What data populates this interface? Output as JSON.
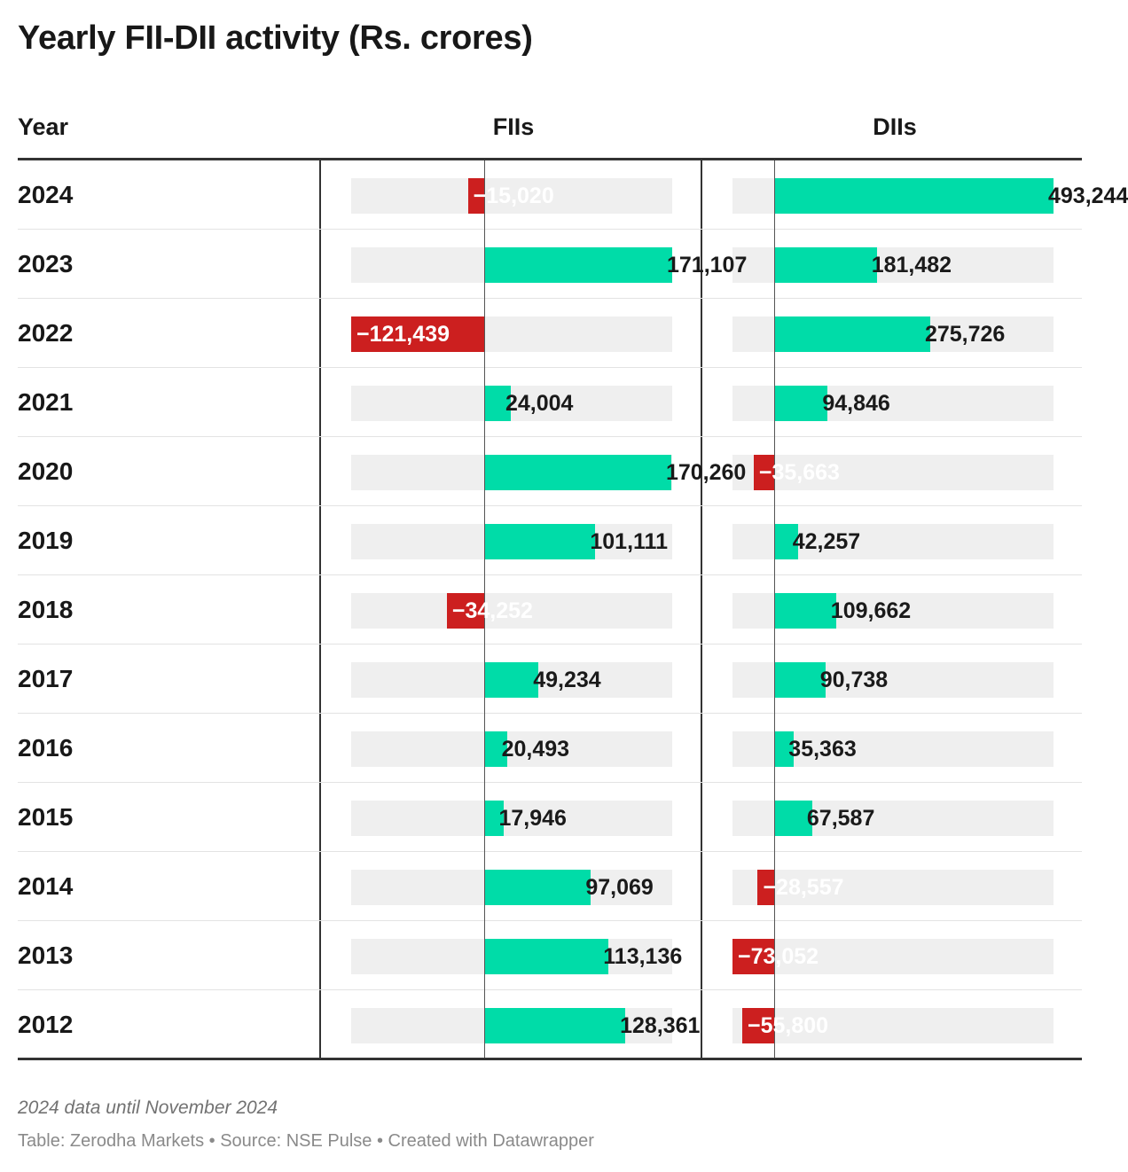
{
  "title": "Yearly FII-DII activity (Rs. crores)",
  "columns": {
    "year": "Year",
    "fii": "FIIs",
    "dii": "DIIs"
  },
  "colors": {
    "positive": "#00dca8",
    "negative": "#cc1f1f",
    "track": "#efefef"
  },
  "chart_data": {
    "type": "bar",
    "orientation": "horizontal",
    "categories": [
      "2024",
      "2023",
      "2022",
      "2021",
      "2020",
      "2019",
      "2018",
      "2017",
      "2016",
      "2015",
      "2014",
      "2013",
      "2012"
    ],
    "series": [
      {
        "name": "FIIs",
        "values": [
          -15020,
          171107,
          -121439,
          24004,
          170260,
          101111,
          -34252,
          49234,
          20493,
          17946,
          97069,
          113136,
          128361
        ],
        "labels": [
          "−15,020",
          "171,107",
          "−121,439",
          "24,004",
          "170,260",
          "101,111",
          "−34,252",
          "49,234",
          "20,493",
          "17,946",
          "97,069",
          "113,136",
          "128,361"
        ],
        "xlim": [
          -121439,
          171107
        ]
      },
      {
        "name": "DIIs",
        "values": [
          493244,
          181482,
          275726,
          94846,
          -35663,
          42257,
          109662,
          90738,
          35363,
          67587,
          -28557,
          -73052,
          -55800
        ],
        "labels": [
          "493,244",
          "181,482",
          "275,726",
          "94,846",
          "−35,663",
          "42,257",
          "109,662",
          "90,738",
          "35,363",
          "67,587",
          "−28,557",
          "−73,052",
          "−55,800"
        ],
        "xlim": [
          -73052,
          493244
        ]
      }
    ]
  },
  "footnote": "2024 data until November 2024",
  "credits": "Table: Zerodha Markets • Source: NSE Pulse • Created with Datawrapper"
}
